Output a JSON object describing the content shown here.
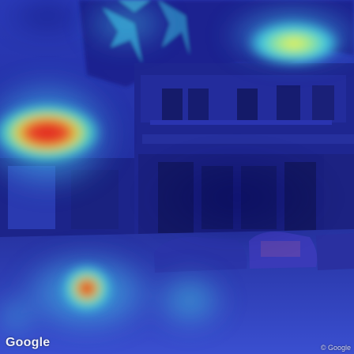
{
  "image": {
    "kind": "street-view-attention-heatmap",
    "palette": [
      "#1a1a8c",
      "#2f5bd8",
      "#3fc8d8",
      "#f2e84a",
      "#e8382a"
    ],
    "watermark_left": "Google",
    "watermark_right": "© Google"
  }
}
